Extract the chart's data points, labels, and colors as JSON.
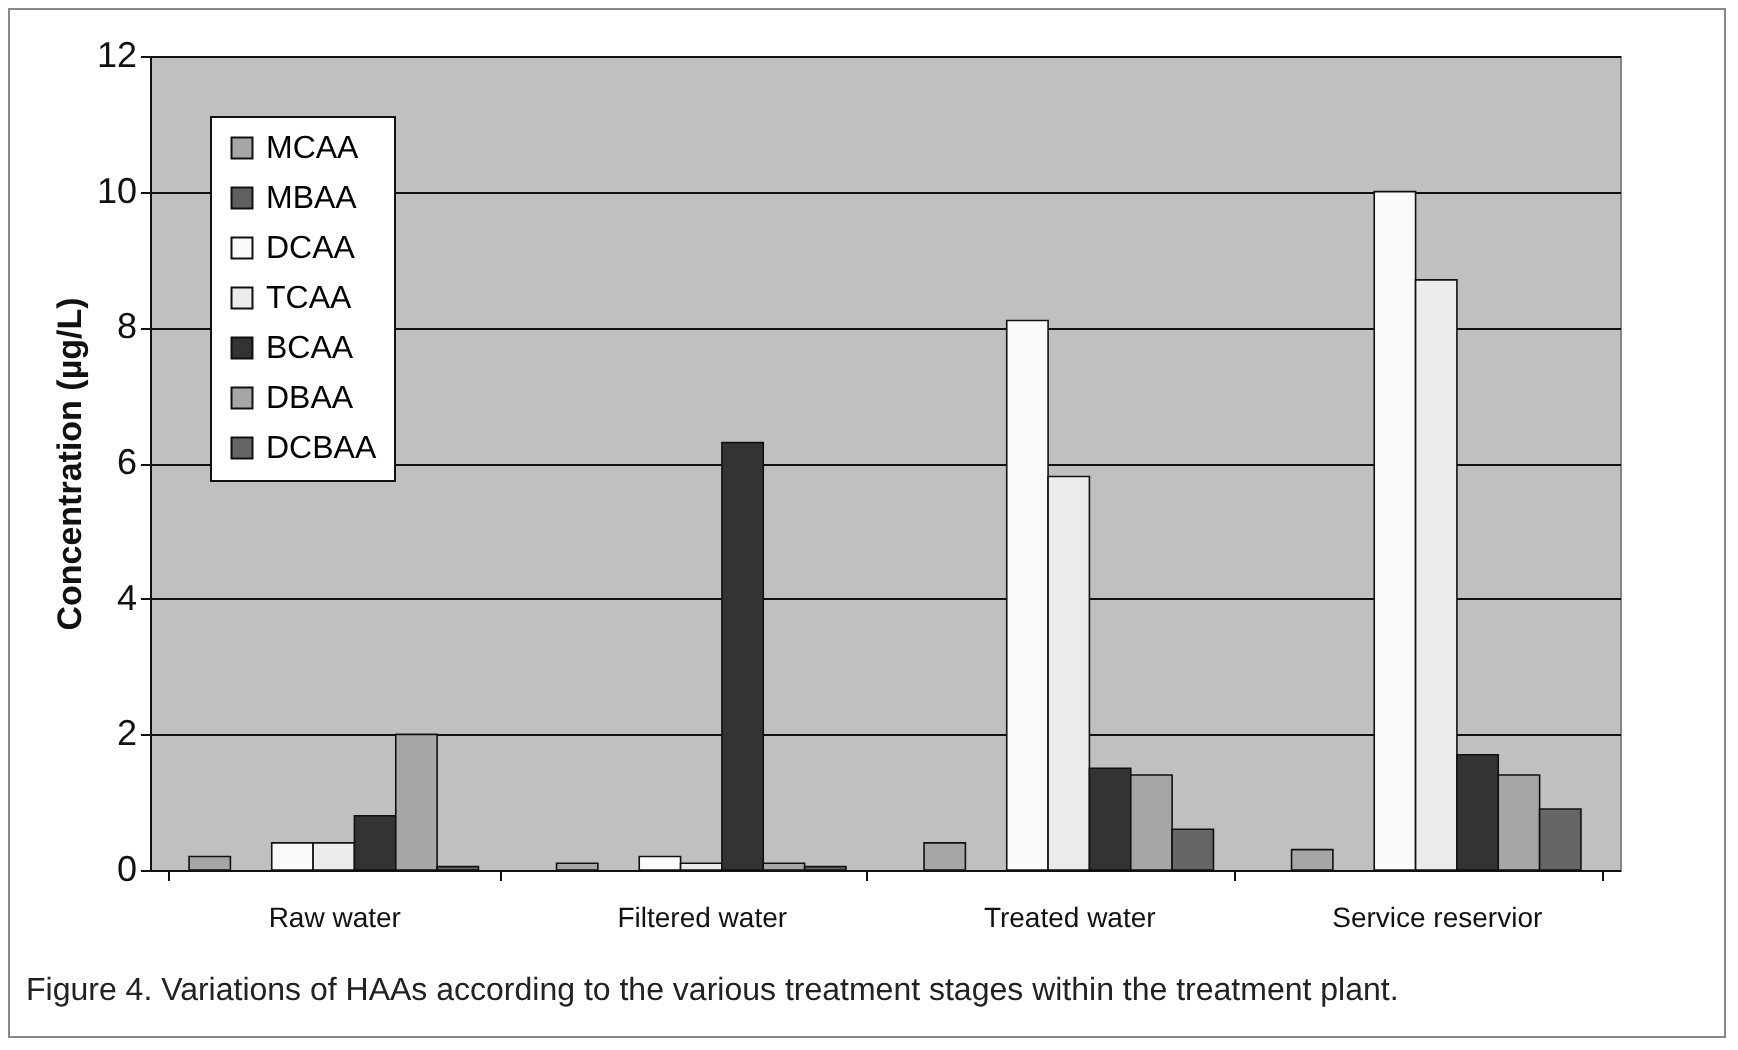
{
  "chart_data": {
    "type": "bar",
    "ylabel": "Concentration (µg/L)",
    "categories": [
      "Raw water",
      "Filtered water",
      "Treated water",
      "Service reservior"
    ],
    "series": [
      {
        "name": "MCAA",
        "color": "#a6a6a6",
        "values": [
          0.2,
          0.1,
          0.4,
          0.3
        ]
      },
      {
        "name": "MBAA",
        "color": "#606060",
        "values": [
          null,
          null,
          null,
          null
        ]
      },
      {
        "name": "DCAA",
        "color": "#fafafa",
        "values": [
          0.4,
          0.2,
          8.1,
          10.0
        ]
      },
      {
        "name": "TCAA",
        "color": "#ececec",
        "values": [
          0.4,
          0.1,
          5.8,
          8.7
        ]
      },
      {
        "name": "BCAA",
        "color": "#333333",
        "values": [
          0.8,
          6.3,
          1.5,
          1.7
        ]
      },
      {
        "name": "DBAA",
        "color": "#a6a6a6",
        "values": [
          2.0,
          0.1,
          1.4,
          1.4
        ]
      },
      {
        "name": "DCBAA",
        "color": "#666666",
        "values": [
          0.05,
          0.05,
          0.6,
          0.9
        ]
      }
    ],
    "ylim": [
      0,
      12
    ],
    "yticks": [
      0,
      2,
      4,
      6,
      8,
      10,
      12
    ],
    "grid": "y",
    "legend": "top left",
    "annotations": [
      "Figure 4. Variations of HAAs according to the various treatment stages within the treatment plant."
    ]
  }
}
